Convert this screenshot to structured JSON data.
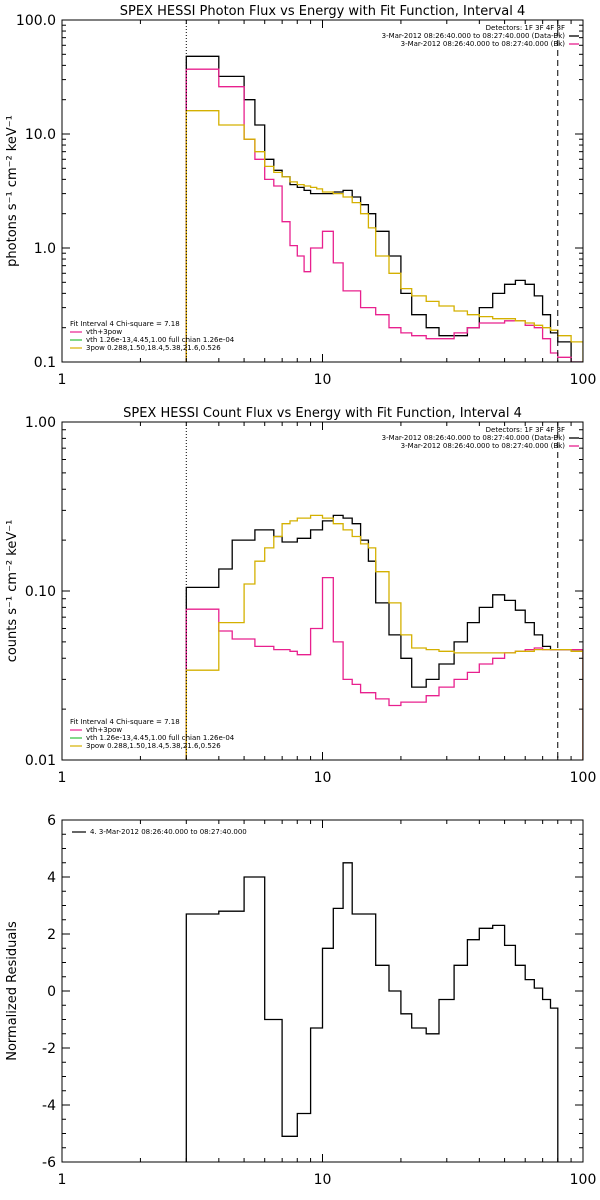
{
  "chart_data": [
    {
      "type": "line",
      "title": "SPEX HESSI Photon Flux vs Energy with Fit Function, Interval 4",
      "ylabel": "photons s⁻¹ cm⁻² keV⁻¹",
      "xlim": [
        1,
        100
      ],
      "ylim": [
        0.1,
        100
      ],
      "xscale": "log",
      "yscale": "log",
      "xticklabels": [
        "1",
        "10",
        "100"
      ],
      "yticklabels": [
        "0.1",
        "1.0",
        "10.0",
        "100.0"
      ],
      "legend_right": [
        "Detectors: 1F 3F 4F 8F",
        "3-Mar-2012 08:26:40.000 to 08:27:40.000 (Data-Bk)",
        "3-Mar-2012 08:26:40.000 to 08:27:40.000 (Bk)"
      ],
      "legend_left": [
        "Fit Interval  4    Chi-square = 7.18",
        "vth+3pow",
        "vth 1.26e-13,4.45,1.00  full chian 1.26e-04",
        "3pow 0.288,1.50,18.4,5.38,21.6,0.526"
      ],
      "vlines": [
        {
          "x": 3.0,
          "style": "dotted"
        },
        {
          "x": 80.0,
          "style": "dashed"
        }
      ],
      "edges": [
        3.0,
        3.5,
        4.0,
        4.5,
        5.0,
        5.5,
        6.0,
        6.5,
        7.0,
        7.5,
        8.0,
        8.5,
        9.0,
        9.5,
        10.0,
        11.0,
        12.0,
        13.0,
        14.0,
        15.0,
        16.0,
        18.0,
        20.0,
        22.0,
        25.0,
        28.0,
        32.0,
        36.0,
        40.0,
        45.0,
        50.0,
        55.0,
        60.0,
        65.0,
        70.0,
        75.0,
        80.0,
        90.0,
        100.0
      ],
      "series": [
        {
          "color": "#000000",
          "values": [
            48,
            48,
            32,
            32,
            20,
            12,
            6,
            4.8,
            4.2,
            3.6,
            3.4,
            3.2,
            3.0,
            3.0,
            3.0,
            3.1,
            3.2,
            2.8,
            2.4,
            2.0,
            1.4,
            0.85,
            0.4,
            0.26,
            0.2,
            0.17,
            0.17,
            0.2,
            0.3,
            0.4,
            0.48,
            0.52,
            0.48,
            0.38,
            0.26,
            0.18,
            0.15,
            0.1
          ]
        },
        {
          "color": "#e8208e",
          "values": [
            37,
            37,
            26,
            26,
            9,
            6,
            4,
            3.5,
            1.7,
            1.05,
            0.85,
            0.62,
            1.0,
            1.0,
            1.4,
            0.74,
            0.42,
            0.42,
            0.3,
            0.3,
            0.26,
            0.2,
            0.18,
            0.17,
            0.16,
            0.16,
            0.18,
            0.2,
            0.22,
            0.22,
            0.23,
            0.23,
            0.21,
            0.2,
            0.16,
            0.12,
            0.11,
            0.1
          ]
        },
        {
          "color": "#d4b000",
          "values": [
            16,
            16,
            12,
            12,
            9,
            7,
            5.2,
            4.6,
            4.2,
            3.8,
            3.6,
            3.5,
            3.4,
            3.3,
            3.1,
            3.0,
            2.8,
            2.5,
            2.0,
            1.5,
            0.85,
            0.6,
            0.44,
            0.38,
            0.34,
            0.31,
            0.28,
            0.26,
            0.25,
            0.24,
            0.24,
            0.23,
            0.22,
            0.21,
            0.2,
            0.19,
            0.17,
            0.15
          ]
        }
      ]
    },
    {
      "type": "line",
      "title": "SPEX HESSI Count Flux vs Energy with Fit Function, Interval 4",
      "ylabel": "counts s⁻¹ cm⁻² keV⁻¹",
      "xlim": [
        1,
        100
      ],
      "ylim": [
        0.01,
        1
      ],
      "xscale": "log",
      "yscale": "log",
      "xticklabels": [
        "1",
        "10",
        "100"
      ],
      "yticklabels": [
        "0.01",
        "0.10",
        "1.00"
      ],
      "legend_right": [
        "Detectors: 1F 3F 4F 8F",
        "3-Mar-2012 08:26:40.000 to 08:27:40.000 (Data-Bk)",
        "3-Mar-2012 08:26:40.000 to 08:27:40.000 (Bk)"
      ],
      "legend_left": [
        "Fit Interval  4    Chi-square = 7.18",
        "vth+3pow",
        "vth 1.26e-13,4.45,1.00  full chian 1.26e-04",
        "3pow 0.288,1.50,18.4,5.38,21.6,0.526"
      ],
      "vlines": [
        {
          "x": 3.0,
          "style": "dotted"
        },
        {
          "x": 80.0,
          "style": "dashed"
        }
      ],
      "edges": [
        3.0,
        3.5,
        4.0,
        4.5,
        5.0,
        5.5,
        6.0,
        6.5,
        7.0,
        7.5,
        8.0,
        8.5,
        9.0,
        9.5,
        10.0,
        11.0,
        12.0,
        13.0,
        14.0,
        15.0,
        16.0,
        18.0,
        20.0,
        22.0,
        25.0,
        28.0,
        32.0,
        36.0,
        40.0,
        45.0,
        50.0,
        55.0,
        60.0,
        65.0,
        70.0,
        75.0,
        80.0,
        90.0,
        100.0
      ],
      "series": [
        {
          "color": "#000000",
          "values": [
            0.105,
            0.105,
            0.135,
            0.2,
            0.2,
            0.23,
            0.23,
            0.21,
            0.195,
            0.195,
            0.205,
            0.205,
            0.23,
            0.23,
            0.26,
            0.28,
            0.27,
            0.25,
            0.2,
            0.15,
            0.085,
            0.055,
            0.04,
            0.027,
            0.03,
            0.037,
            0.05,
            0.065,
            0.08,
            0.095,
            0.088,
            0.077,
            0.065,
            0.055,
            0.047,
            0.045,
            0.045,
            0.045
          ]
        },
        {
          "color": "#e8208e",
          "values": [
            0.078,
            0.078,
            0.058,
            0.052,
            0.052,
            0.047,
            0.047,
            0.045,
            0.045,
            0.044,
            0.042,
            0.042,
            0.06,
            0.06,
            0.12,
            0.05,
            0.03,
            0.028,
            0.025,
            0.025,
            0.023,
            0.021,
            0.022,
            0.022,
            0.024,
            0.027,
            0.03,
            0.033,
            0.037,
            0.04,
            0.043,
            0.044,
            0.045,
            0.046,
            0.045,
            0.045,
            0.045,
            0.045
          ]
        },
        {
          "color": "#d4b000",
          "values": [
            0.034,
            0.034,
            0.065,
            0.065,
            0.11,
            0.15,
            0.18,
            0.21,
            0.25,
            0.26,
            0.27,
            0.27,
            0.28,
            0.28,
            0.27,
            0.25,
            0.23,
            0.21,
            0.19,
            0.18,
            0.13,
            0.085,
            0.055,
            0.046,
            0.045,
            0.044,
            0.043,
            0.043,
            0.043,
            0.043,
            0.043,
            0.044,
            0.044,
            0.045,
            0.045,
            0.045,
            0.045,
            0.044
          ]
        }
      ]
    },
    {
      "type": "line",
      "title": "",
      "ylabel": "Normalized Residuals",
      "xlim": [
        1,
        100
      ],
      "ylim": [
        -6,
        6
      ],
      "xscale": "log",
      "yscale": "linear",
      "xticklabels": [
        "1",
        "10",
        "100"
      ],
      "yticklabels": [
        "-6",
        "-4",
        "-2",
        "0",
        "2",
        "4",
        "6"
      ],
      "legend_left": [
        "4.  3-Mar-2012 08:26:40.000 to 08:27:40.000"
      ],
      "edges": [
        3.0,
        3.5,
        4.0,
        4.5,
        5.0,
        5.5,
        6.0,
        6.5,
        7.0,
        7.5,
        8.0,
        8.5,
        9.0,
        9.5,
        10.0,
        11.0,
        12.0,
        13.0,
        14.0,
        15.0,
        16.0,
        18.0,
        20.0,
        22.0,
        25.0,
        28.0,
        32.0,
        36.0,
        40.0,
        45.0,
        50.0,
        55.0,
        60.0,
        65.0,
        70.0,
        75.0,
        80.0
      ],
      "series": [
        {
          "color": "#000000",
          "values": [
            2.7,
            2.7,
            2.8,
            2.8,
            4.0,
            4.0,
            -1.0,
            -1.0,
            -5.1,
            -5.1,
            -4.3,
            -4.3,
            -1.3,
            -1.3,
            1.5,
            2.9,
            4.5,
            2.7,
            2.7,
            2.7,
            0.9,
            0.0,
            -0.8,
            -1.3,
            -1.5,
            -0.3,
            0.9,
            1.8,
            2.2,
            2.3,
            1.6,
            0.9,
            0.4,
            0.1,
            -0.3,
            -0.6
          ]
        }
      ]
    }
  ]
}
